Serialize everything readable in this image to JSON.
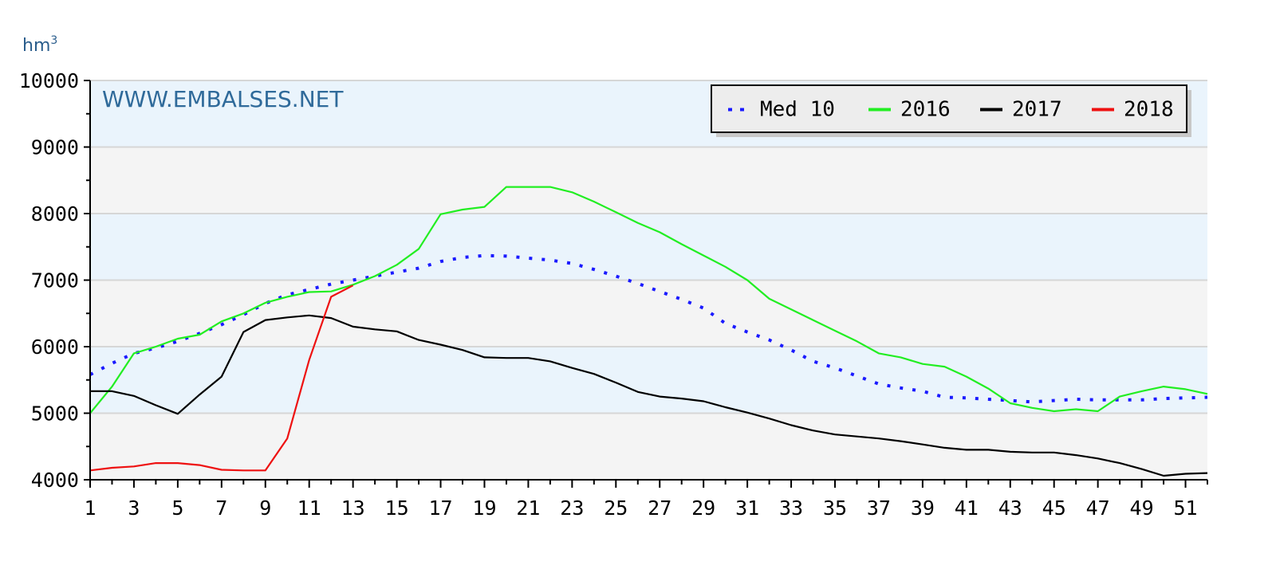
{
  "chart_data": {
    "type": "line",
    "unit_label": "hm",
    "unit_superscript": "3",
    "watermark": "WWW.EMBALSES.NET",
    "ylim": [
      4000,
      10000
    ],
    "xlim": [
      1,
      52
    ],
    "y_ticks": [
      "4000",
      "5000",
      "6000",
      "7000",
      "8000",
      "9000",
      "10000"
    ],
    "x_ticks": [
      "1",
      "3",
      "5",
      "7",
      "9",
      "11",
      "13",
      "15",
      "17",
      "19",
      "21",
      "23",
      "25",
      "27",
      "29",
      "31",
      "33",
      "35",
      "37",
      "39",
      "41",
      "43",
      "45",
      "47",
      "49",
      "51"
    ],
    "legend_position": "top-right",
    "colors": {
      "band_light": "#eaf4fc",
      "band_gray": "#f4f4f4",
      "grid": "#d6d6d6"
    },
    "series": [
      {
        "name": "Med 10",
        "color": "#1a1aff",
        "style": "dotted",
        "points": [
          [
            1,
            5580
          ],
          [
            2,
            5750
          ],
          [
            3,
            5900
          ],
          [
            4,
            5980
          ],
          [
            5,
            6080
          ],
          [
            6,
            6200
          ],
          [
            7,
            6330
          ],
          [
            8,
            6480
          ],
          [
            9,
            6650
          ],
          [
            10,
            6780
          ],
          [
            11,
            6860
          ],
          [
            12,
            6940
          ],
          [
            13,
            7000
          ],
          [
            14,
            7060
          ],
          [
            15,
            7120
          ],
          [
            16,
            7180
          ],
          [
            17,
            7280
          ],
          [
            18,
            7340
          ],
          [
            19,
            7370
          ],
          [
            20,
            7360
          ],
          [
            21,
            7330
          ],
          [
            22,
            7300
          ],
          [
            23,
            7250
          ],
          [
            24,
            7160
          ],
          [
            25,
            7060
          ],
          [
            26,
            6950
          ],
          [
            27,
            6830
          ],
          [
            28,
            6710
          ],
          [
            29,
            6580
          ],
          [
            30,
            6350
          ],
          [
            31,
            6220
          ],
          [
            32,
            6100
          ],
          [
            33,
            5950
          ],
          [
            34,
            5780
          ],
          [
            35,
            5680
          ],
          [
            36,
            5560
          ],
          [
            37,
            5440
          ],
          [
            38,
            5380
          ],
          [
            39,
            5330
          ],
          [
            40,
            5240
          ],
          [
            41,
            5230
          ],
          [
            42,
            5210
          ],
          [
            43,
            5190
          ],
          [
            44,
            5170
          ],
          [
            45,
            5190
          ],
          [
            46,
            5210
          ],
          [
            47,
            5200
          ],
          [
            48,
            5200
          ],
          [
            49,
            5200
          ],
          [
            50,
            5220
          ],
          [
            51,
            5230
          ],
          [
            52,
            5240
          ]
        ]
      },
      {
        "name": "2016",
        "color": "#22ee22",
        "style": "solid",
        "points": [
          [
            1,
            5000
          ],
          [
            2,
            5400
          ],
          [
            3,
            5900
          ],
          [
            4,
            6000
          ],
          [
            5,
            6120
          ],
          [
            6,
            6180
          ],
          [
            7,
            6380
          ],
          [
            8,
            6500
          ],
          [
            9,
            6660
          ],
          [
            10,
            6750
          ],
          [
            11,
            6820
          ],
          [
            12,
            6830
          ],
          [
            13,
            6930
          ],
          [
            14,
            7060
          ],
          [
            15,
            7230
          ],
          [
            16,
            7470
          ],
          [
            17,
            7990
          ],
          [
            18,
            8060
          ],
          [
            19,
            8100
          ],
          [
            20,
            8400
          ],
          [
            21,
            8400
          ],
          [
            22,
            8400
          ],
          [
            23,
            8320
          ],
          [
            24,
            8180
          ],
          [
            25,
            8020
          ],
          [
            26,
            7860
          ],
          [
            27,
            7720
          ],
          [
            28,
            7540
          ],
          [
            29,
            7370
          ],
          [
            30,
            7200
          ],
          [
            31,
            7000
          ],
          [
            32,
            6720
          ],
          [
            33,
            6560
          ],
          [
            34,
            6400
          ],
          [
            35,
            6240
          ],
          [
            36,
            6080
          ],
          [
            37,
            5900
          ],
          [
            38,
            5840
          ],
          [
            39,
            5740
          ],
          [
            40,
            5700
          ],
          [
            41,
            5550
          ],
          [
            42,
            5370
          ],
          [
            43,
            5150
          ],
          [
            44,
            5080
          ],
          [
            45,
            5030
          ],
          [
            46,
            5060
          ],
          [
            47,
            5030
          ],
          [
            48,
            5250
          ],
          [
            49,
            5330
          ],
          [
            50,
            5400
          ],
          [
            51,
            5360
          ],
          [
            52,
            5290
          ]
        ]
      },
      {
        "name": "2017",
        "color": "#000000",
        "style": "solid",
        "points": [
          [
            1,
            5330
          ],
          [
            2,
            5330
          ],
          [
            3,
            5260
          ],
          [
            4,
            5120
          ],
          [
            5,
            4990
          ],
          [
            6,
            5280
          ],
          [
            7,
            5550
          ],
          [
            8,
            6220
          ],
          [
            9,
            6400
          ],
          [
            10,
            6440
          ],
          [
            11,
            6470
          ],
          [
            12,
            6430
          ],
          [
            13,
            6300
          ],
          [
            14,
            6260
          ],
          [
            15,
            6230
          ],
          [
            16,
            6100
          ],
          [
            17,
            6030
          ],
          [
            18,
            5950
          ],
          [
            19,
            5840
          ],
          [
            20,
            5830
          ],
          [
            21,
            5830
          ],
          [
            22,
            5780
          ],
          [
            23,
            5680
          ],
          [
            24,
            5590
          ],
          [
            25,
            5460
          ],
          [
            26,
            5320
          ],
          [
            27,
            5250
          ],
          [
            28,
            5220
          ],
          [
            29,
            5180
          ],
          [
            30,
            5090
          ],
          [
            31,
            5010
          ],
          [
            32,
            4920
          ],
          [
            33,
            4820
          ],
          [
            34,
            4740
          ],
          [
            35,
            4680
          ],
          [
            36,
            4650
          ],
          [
            37,
            4620
          ],
          [
            38,
            4580
          ],
          [
            39,
            4530
          ],
          [
            40,
            4480
          ],
          [
            41,
            4450
          ],
          [
            42,
            4450
          ],
          [
            43,
            4420
          ],
          [
            44,
            4410
          ],
          [
            45,
            4410
          ],
          [
            46,
            4370
          ],
          [
            47,
            4320
          ],
          [
            48,
            4250
          ],
          [
            49,
            4160
          ],
          [
            50,
            4060
          ],
          [
            51,
            4090
          ],
          [
            52,
            4100
          ]
        ]
      },
      {
        "name": "2018",
        "color": "#ee1111",
        "style": "solid",
        "points": [
          [
            1,
            4140
          ],
          [
            2,
            4180
          ],
          [
            3,
            4200
          ],
          [
            4,
            4250
          ],
          [
            5,
            4250
          ],
          [
            6,
            4220
          ],
          [
            7,
            4150
          ],
          [
            8,
            4140
          ],
          [
            9,
            4140
          ],
          [
            10,
            4620
          ],
          [
            11,
            5800
          ],
          [
            12,
            6750
          ],
          [
            13,
            6920
          ]
        ]
      }
    ]
  }
}
